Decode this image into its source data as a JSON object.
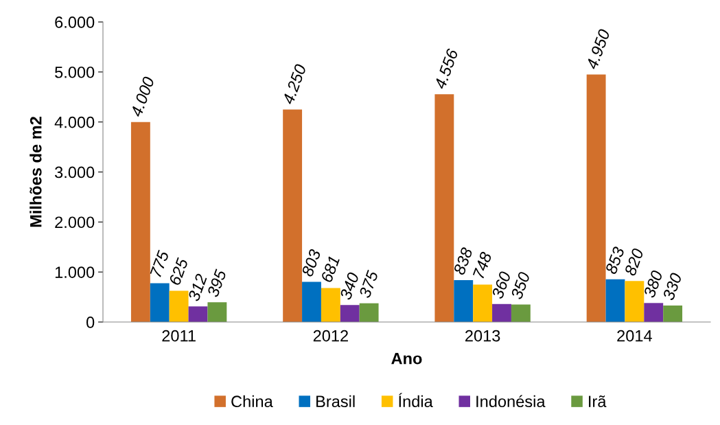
{
  "chart_data": {
    "type": "bar",
    "xlabel": "Ano",
    "ylabel": "Milhões de m2",
    "categories": [
      "2011",
      "2012",
      "2013",
      "2014"
    ],
    "series": [
      {
        "name": "China",
        "color": "#d2702c",
        "values": [
          4000,
          4250,
          4556,
          4950
        ],
        "value_labels": [
          "4.000",
          "4.250",
          "4.556",
          "4.950"
        ]
      },
      {
        "name": "Brasil",
        "color": "#0070c0",
        "values": [
          775,
          803,
          838,
          853
        ],
        "value_labels": [
          "775",
          "803",
          "838",
          "853"
        ]
      },
      {
        "name": "Índia",
        "color": "#ffc000",
        "values": [
          625,
          681,
          748,
          820
        ],
        "value_labels": [
          "625",
          "681",
          "748",
          "820"
        ]
      },
      {
        "name": "Indonésia",
        "color": "#7030a0",
        "values": [
          312,
          340,
          360,
          380
        ],
        "value_labels": [
          "312",
          "340",
          "360",
          "380"
        ]
      },
      {
        "name": "Irã",
        "color": "#6a9a3f",
        "values": [
          395,
          375,
          350,
          330
        ],
        "value_labels": [
          "395",
          "375",
          "350",
          "330"
        ]
      }
    ],
    "ylim": [
      0,
      6000
    ],
    "yticks": [
      0,
      {
        "value": 1000,
        "label": "1.000"
      },
      {
        "value": 2000,
        "label": "2.000"
      },
      {
        "value": 3000,
        "label": "3.000"
      },
      {
        "value": 4000,
        "label": "4.000"
      },
      {
        "value": 5000,
        "label": "5.000"
      },
      {
        "value": 6000,
        "label": "6.000"
      }
    ],
    "grid": false,
    "legend": "bottom"
  }
}
